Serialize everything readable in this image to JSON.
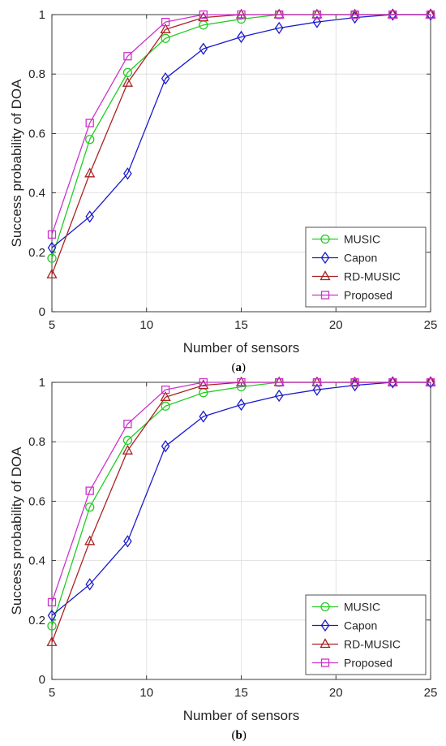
{
  "chart_data": [
    {
      "type": "line",
      "caption_open": "(",
      "caption_letter": "a",
      "caption_close": ")",
      "xlabel": "Number of sensors",
      "ylabel": "Success probability of DOA",
      "xlim": [
        5,
        25
      ],
      "ylim": [
        0,
        1
      ],
      "xticks": [
        5,
        10,
        15,
        20,
        25
      ],
      "yticks": [
        0,
        0.2,
        0.4,
        0.6,
        0.8,
        1
      ],
      "xtick_labels": [
        "5",
        "10",
        "15",
        "20",
        "25"
      ],
      "ytick_labels": [
        "0",
        "0.2",
        "0.4",
        "0.6",
        "0.8",
        "1"
      ],
      "grid": true,
      "legend_position": "bottom-right",
      "x": [
        5,
        7,
        9,
        11,
        13,
        15,
        17,
        19,
        21,
        23,
        25
      ],
      "series": [
        {
          "name": "MUSIC",
          "color": "#22cc22",
          "marker": "circle",
          "values": [
            0.18,
            0.58,
            0.805,
            0.92,
            0.965,
            0.985,
            1.0,
            1.0,
            1.0,
            1.0,
            1.0
          ]
        },
        {
          "name": "Capon",
          "color": "#1a1acc",
          "marker": "diamond",
          "values": [
            0.215,
            0.32,
            0.465,
            0.785,
            0.885,
            0.925,
            0.955,
            0.975,
            0.99,
            1.0,
            1.0
          ]
        },
        {
          "name": "RD-MUSIC",
          "color": "#aa2222",
          "marker": "triangle",
          "values": [
            0.125,
            0.465,
            0.77,
            0.95,
            0.99,
            1.0,
            1.0,
            1.0,
            1.0,
            1.0,
            1.0
          ]
        },
        {
          "name": "Proposed",
          "color": "#cc33cc",
          "marker": "square",
          "values": [
            0.26,
            0.635,
            0.86,
            0.975,
            1.0,
            1.0,
            1.0,
            1.0,
            1.0,
            1.0,
            1.0
          ]
        }
      ]
    },
    {
      "type": "line",
      "caption_open": "(",
      "caption_letter": "b",
      "caption_close": ")",
      "xlabel": "Number of sensors",
      "ylabel": "Success probability of DOA",
      "xlim": [
        5,
        25
      ],
      "ylim": [
        0,
        1
      ],
      "xticks": [
        5,
        10,
        15,
        20,
        25
      ],
      "yticks": [
        0,
        0.2,
        0.4,
        0.6,
        0.8,
        1
      ],
      "xtick_labels": [
        "5",
        "10",
        "15",
        "20",
        "25"
      ],
      "ytick_labels": [
        "0",
        "0.2",
        "0.4",
        "0.6",
        "0.8",
        "1"
      ],
      "grid": true,
      "legend_position": "bottom-right",
      "x": [
        5,
        7,
        9,
        11,
        13,
        15,
        17,
        19,
        21,
        23,
        25
      ],
      "series": [
        {
          "name": "MUSIC",
          "color": "#22cc22",
          "marker": "circle",
          "values": [
            0.18,
            0.58,
            0.805,
            0.92,
            0.965,
            0.985,
            1.0,
            1.0,
            1.0,
            1.0,
            1.0
          ]
        },
        {
          "name": "Capon",
          "color": "#1a1acc",
          "marker": "diamond",
          "values": [
            0.215,
            0.32,
            0.465,
            0.785,
            0.885,
            0.925,
            0.955,
            0.975,
            0.99,
            1.0,
            1.0
          ]
        },
        {
          "name": "RD-MUSIC",
          "color": "#aa2222",
          "marker": "triangle",
          "values": [
            0.125,
            0.465,
            0.77,
            0.95,
            0.99,
            1.0,
            1.0,
            1.0,
            1.0,
            1.0,
            1.0
          ]
        },
        {
          "name": "Proposed",
          "color": "#cc33cc",
          "marker": "square",
          "values": [
            0.26,
            0.635,
            0.86,
            0.975,
            1.0,
            1.0,
            1.0,
            1.0,
            1.0,
            1.0,
            1.0
          ]
        }
      ]
    }
  ]
}
